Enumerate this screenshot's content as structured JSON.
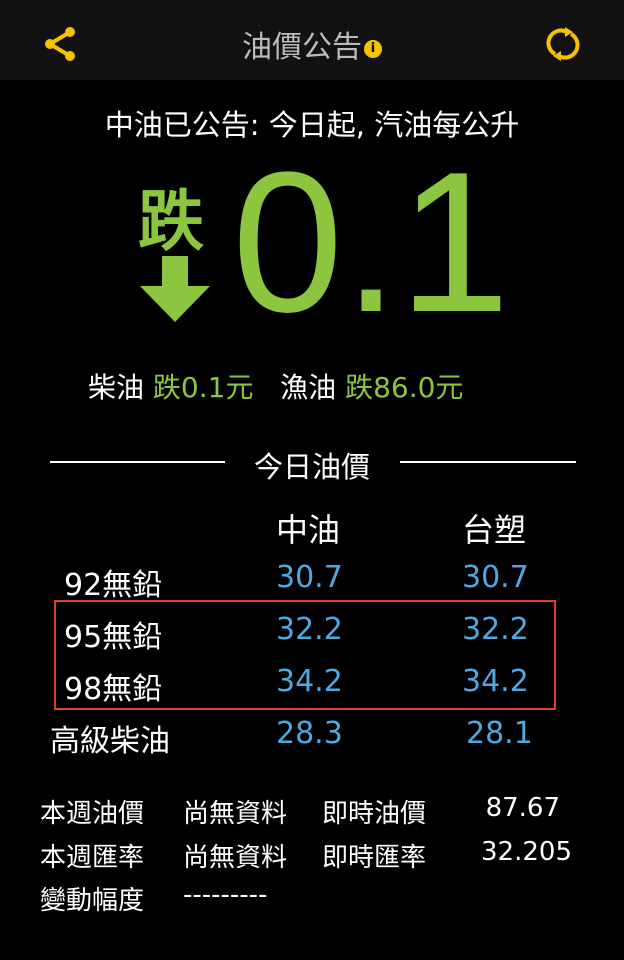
{
  "header": {
    "title": "油價公告",
    "info_icon": "info-icon",
    "share_icon": "share-icon",
    "refresh_icon": "refresh-icon",
    "accent": "#f5c400"
  },
  "announcement": {
    "text": "中油已公告: 今日起, 汽油每公升",
    "direction": "跌",
    "amount": "0.1",
    "arrow_icon": "arrow-down-icon",
    "color": "#8cc63f"
  },
  "others": [
    {
      "label": "柴油",
      "change": "跌0.1元"
    },
    {
      "label": "漁油",
      "change": "跌86.0元"
    }
  ],
  "today": {
    "heading": "今日油價",
    "columns": [
      "中油",
      "台塑"
    ],
    "rows": [
      {
        "name": "92無鉛",
        "cpc": "30.7",
        "fpcc": "30.7"
      },
      {
        "name": "95無鉛",
        "cpc": "32.2",
        "fpcc": "32.2"
      },
      {
        "name": "98無鉛",
        "cpc": "34.2",
        "fpcc": "34.2"
      },
      {
        "name": "高級柴油",
        "cpc": "28.3",
        "fpcc": "28.1"
      }
    ],
    "highlight_color": "#e0402a",
    "value_color": "#4fa8e0"
  },
  "footer": [
    {
      "label": "本週油價",
      "status": "尚無資料",
      "rt_label": "即時油價",
      "rt_value": "87.67"
    },
    {
      "label": "本週匯率",
      "status": "尚無資料",
      "rt_label": "即時匯率",
      "rt_value": "32.205"
    }
  ],
  "change": {
    "label": "變動幅度",
    "value": "---------"
  }
}
